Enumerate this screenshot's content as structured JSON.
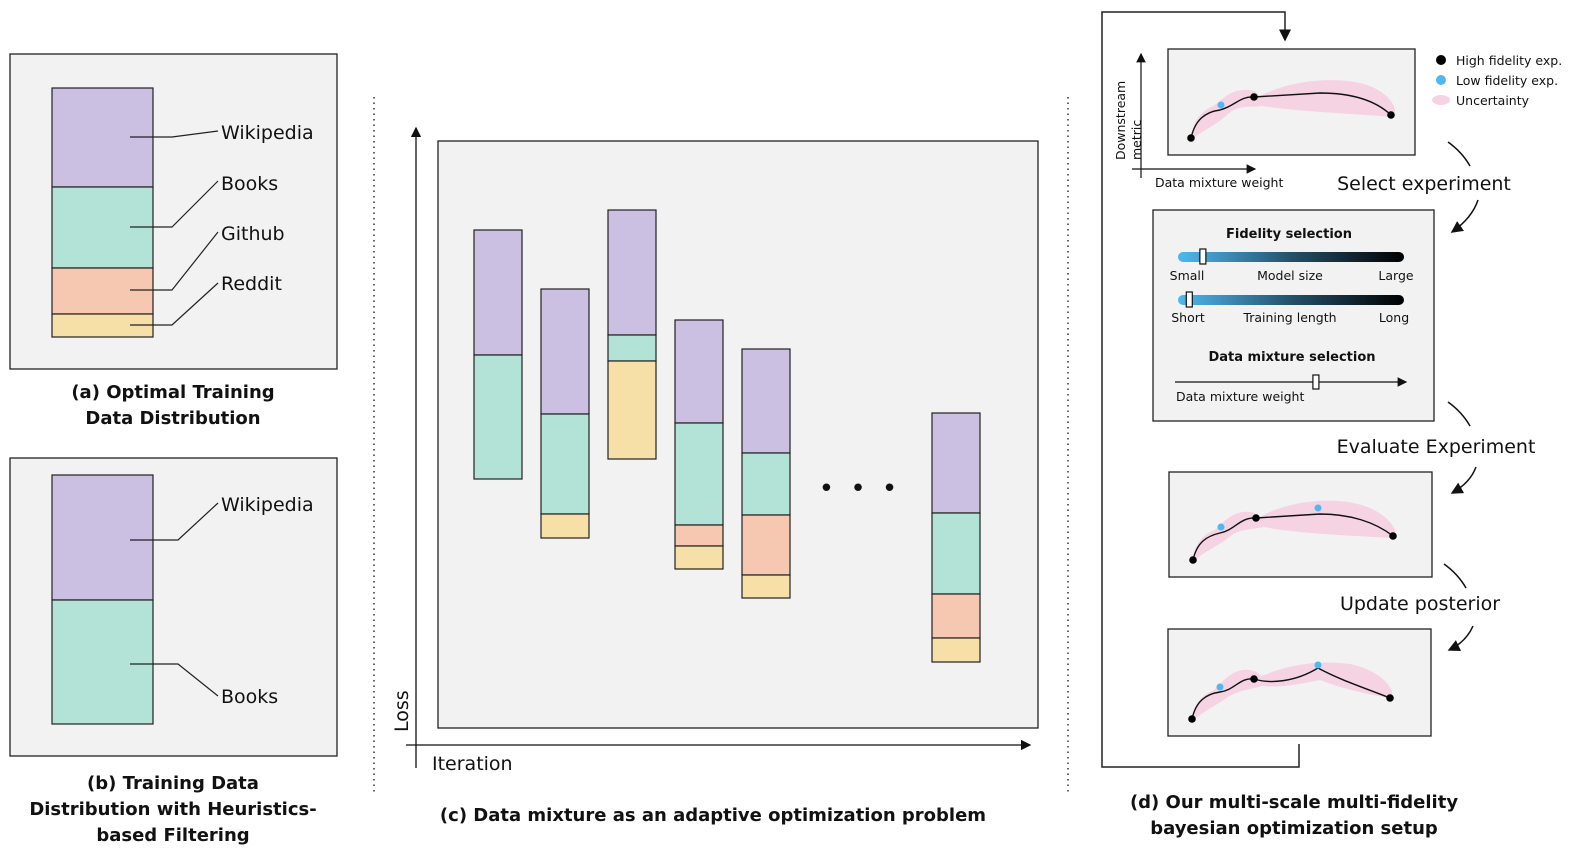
{
  "colors": {
    "wikipedia": "#cbbfe2",
    "books": "#b3e3d6",
    "github": "#f6c7b1",
    "reddit": "#f7dfa8",
    "panel_bg": "#f2f2f2",
    "uncertainty": "#f5d3e3",
    "low_fidelity": "#4fb8f2",
    "high_fidelity": "#000000"
  },
  "panel_a": {
    "labels": [
      "Wikipedia",
      "Books",
      "Github",
      "Reddit"
    ],
    "caption": [
      "(a) Optimal Training",
      "Data Distribution"
    ]
  },
  "panel_b": {
    "labels": [
      "Wikipedia",
      "Books"
    ],
    "caption": [
      "(b) Training Data",
      "Distribution with Heuristics-",
      "based Filtering"
    ]
  },
  "panel_c": {
    "y_axis_label": "Loss",
    "x_axis_label": "Iteration",
    "ellipsis": "• • •",
    "caption": "(c) Data mixture as an adaptive optimization problem"
  },
  "panel_d": {
    "y_axis_label": [
      "Downstream",
      "metric"
    ],
    "x_axis_label": "Data mixture weight",
    "legend": [
      "High fidelity exp.",
      "Low fidelity exp.",
      "Uncertainty"
    ],
    "steps": [
      "Select experiment",
      "Evaluate Experiment",
      "Update posterior"
    ],
    "fidelity": {
      "title": "Fidelity selection",
      "model_size": {
        "min": "Small",
        "label": "Model size",
        "max": "Large",
        "value": 0.11
      },
      "training_length": {
        "min": "Short",
        "label": "Training length",
        "max": "Long",
        "value": 0.05
      }
    },
    "mixture": {
      "title": "Data mixture selection",
      "label": "Data mixture weight",
      "value": 0.61
    },
    "caption": [
      "(d) Our multi-scale multi-fidelity",
      "bayesian optimization setup"
    ]
  }
}
